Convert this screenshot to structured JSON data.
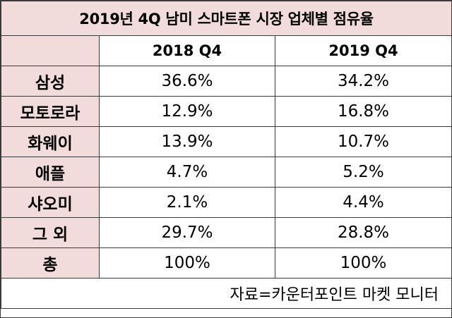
{
  "chart_data": {
    "type": "table",
    "title": "2019년 4Q 남미 스마트폰 시장 업체별 점유율",
    "columns": [
      "2018 Q4",
      "2019 Q4"
    ],
    "rows": [
      {
        "label": "삼성",
        "values": [
          "36.6%",
          "34.2%"
        ]
      },
      {
        "label": "모토로라",
        "values": [
          "12.9%",
          "16.8%"
        ]
      },
      {
        "label": "화웨이",
        "values": [
          "13.9%",
          "10.7%"
        ]
      },
      {
        "label": "애플",
        "values": [
          "4.7%",
          "5.2%"
        ]
      },
      {
        "label": "샤오미",
        "values": [
          "2.1%",
          "4.4%"
        ]
      },
      {
        "label": "그 외",
        "values": [
          "29.7%",
          "28.8%"
        ]
      },
      {
        "label": "총",
        "values": [
          "100%",
          "100%"
        ]
      }
    ],
    "source": "자료=카운터포인트 마켓 모니터"
  },
  "colors": {
    "header_fill": "#f2dcdb",
    "body_fill": "#ffffff",
    "border": "#3a3a3a"
  }
}
